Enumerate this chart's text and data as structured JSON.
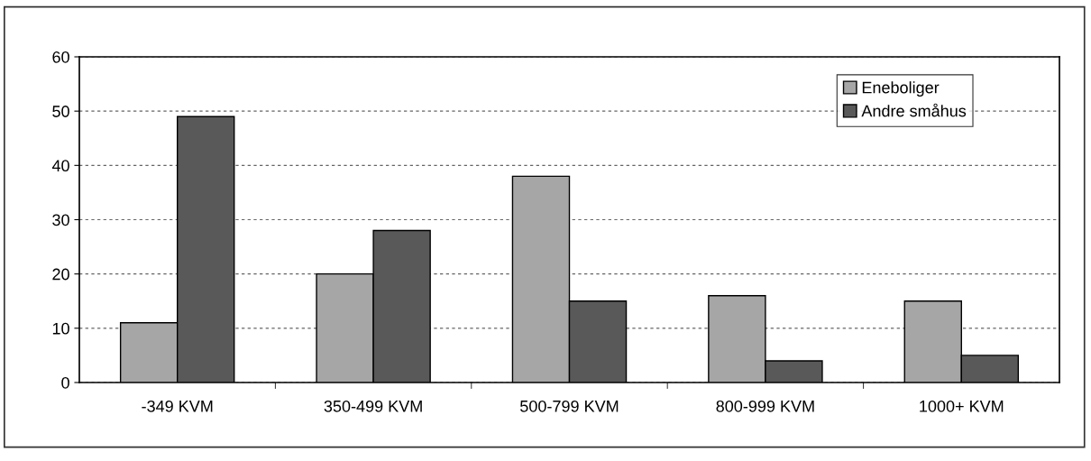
{
  "chart_data": {
    "type": "bar",
    "categories": [
      "-349 KVM",
      "350-499 KVM",
      "500-799 KVM",
      "800-999 KVM",
      "1000+ KVM"
    ],
    "series": [
      {
        "name": "Eneboliger",
        "color": "#a6a6a6",
        "values": [
          11,
          20,
          38,
          16,
          15
        ]
      },
      {
        "name": "Andre småhus",
        "color": "#595959",
        "values": [
          49,
          28,
          15,
          4,
          5
        ]
      }
    ],
    "ylim": [
      0,
      60
    ],
    "yticks": [
      0,
      10,
      20,
      30,
      40,
      50,
      60
    ],
    "grid": "y",
    "legend": "top right"
  }
}
